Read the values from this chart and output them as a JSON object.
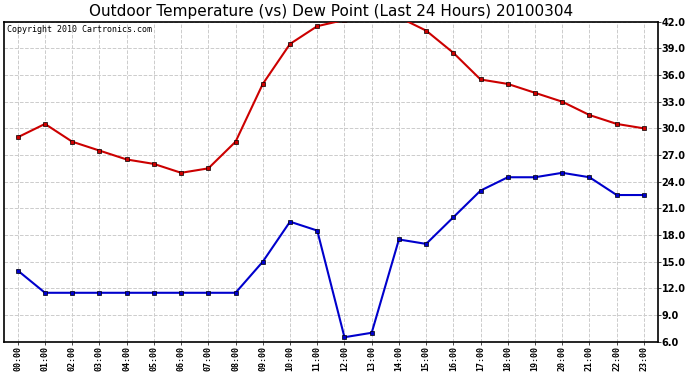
{
  "title": "Outdoor Temperature (vs) Dew Point (Last 24 Hours) 20100304",
  "copyright": "Copyright 2010 Cartronics.com",
  "hours": [
    0,
    1,
    2,
    3,
    4,
    5,
    6,
    7,
    8,
    9,
    10,
    11,
    12,
    13,
    14,
    15,
    16,
    17,
    18,
    19,
    20,
    21,
    22,
    23
  ],
  "temp": [
    29.0,
    30.5,
    28.5,
    27.5,
    26.5,
    26.0,
    25.0,
    25.5,
    28.5,
    35.0,
    39.5,
    41.5,
    42.2,
    42.5,
    42.5,
    41.0,
    38.5,
    35.5,
    35.0,
    34.0,
    33.0,
    31.5,
    30.5,
    30.0
  ],
  "dew": [
    14.0,
    11.5,
    11.5,
    11.5,
    11.5,
    11.5,
    11.5,
    11.5,
    11.5,
    15.0,
    19.5,
    18.5,
    6.5,
    7.0,
    17.5,
    17.0,
    20.0,
    23.0,
    24.5,
    24.5,
    25.0,
    24.5,
    22.5,
    22.5
  ],
  "temp_color": "#cc0000",
  "dew_color": "#0000cc",
  "bg_color": "#ffffff",
  "plot_bg_color": "#ffffff",
  "grid_color": "#cccccc",
  "ylim": [
    6.0,
    42.0
  ],
  "yticks": [
    6.0,
    9.0,
    12.0,
    15.0,
    18.0,
    21.0,
    24.0,
    27.0,
    30.0,
    33.0,
    36.0,
    39.0,
    42.0
  ],
  "title_fontsize": 11,
  "copyright_fontsize": 6,
  "marker": "s",
  "marker_size": 3,
  "line_width": 1.5
}
